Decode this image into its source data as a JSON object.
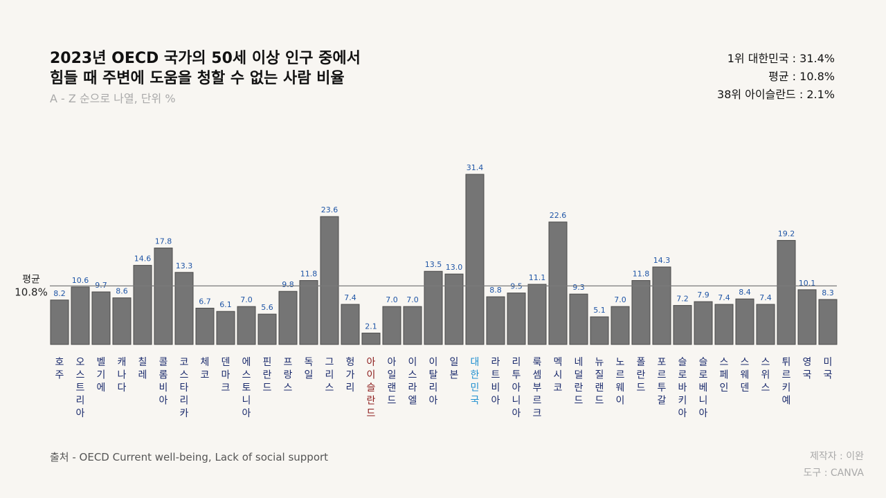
{
  "header": {
    "title_line1": "2023년 OECD 국가의 50세 이상 인구 중에서",
    "title_line2": "힘들 때 주변에 도움을 청할 수 없는 사람 비율",
    "subtitle": "A - Z 순으로 나열, 단위 %"
  },
  "stats": {
    "top": "1위 대한민국 : 31.4%",
    "average": "평균 : 10.8%",
    "bottom": "38위 아이슬란드 : 2.1%"
  },
  "footer": {
    "source": "출처 - OECD Current well-being, Lack of social support",
    "maker": "제작자 : 이완",
    "tool": "도구 : CANVA"
  },
  "chart_data": {
    "type": "bar",
    "title": "2023년 OECD 국가의 50세 이상 인구 중에서 힘들 때 주변에 도움을 청할 수 없는 사람 비율",
    "subtitle": "A - Z 순으로 나열, 단위 %",
    "xlabel": "",
    "ylabel": "",
    "ylim": [
      0,
      34
    ],
    "grid": false,
    "categories": [
      "호주",
      "오스트리아",
      "벨기에",
      "캐나다",
      "칠레",
      "콜롬비아",
      "코스타리카",
      "체코",
      "덴마크",
      "에스토니아",
      "핀란드",
      "프랑스",
      "독일",
      "그리스",
      "헝가리",
      "아이슬란드",
      "아일랜드",
      "이스라엘",
      "이탈리아",
      "일본",
      "대한민국",
      "라트비아",
      "리투아니아",
      "룩셈부르크",
      "멕시코",
      "네덜란드",
      "뉴질랜드",
      "노르웨이",
      "폴란드",
      "포르투갈",
      "슬로바키아",
      "슬로베니아",
      "스페인",
      "스웨덴",
      "스위스",
      "튀르키예",
      "영국",
      "미국"
    ],
    "values": [
      8.2,
      10.6,
      9.7,
      8.6,
      14.6,
      17.8,
      13.3,
      6.7,
      6.1,
      7.0,
      5.6,
      9.8,
      11.8,
      23.6,
      7.4,
      2.1,
      7.0,
      7.0,
      13.5,
      13.0,
      31.4,
      8.8,
      9.5,
      11.1,
      22.6,
      9.3,
      5.1,
      7.0,
      11.8,
      14.3,
      7.2,
      7.9,
      7.4,
      8.4,
      7.4,
      19.2,
      10.1,
      8.3
    ],
    "value_labels": [
      "8.2",
      "10.6",
      "9.7",
      "8.6",
      "14.6",
      "17.8",
      "13.3",
      "6.7",
      "6.1",
      "7.0",
      "5.6",
      "9.8",
      "11.8",
      "23.6",
      "7.4",
      "2.1",
      "7.0",
      "7.0",
      "13.5",
      "13.0",
      "31.4",
      "8.8",
      "9.5",
      "11.1",
      "22.6",
      "9.3",
      "5.1",
      "7.0",
      "11.8",
      "14.3",
      "7.2",
      "7.9",
      "7.4",
      "8.4",
      "7.4",
      "19.2",
      "10.1",
      "8.3"
    ],
    "average": 10.8,
    "average_label_line1": "평균",
    "average_label_line2": "10.8%",
    "highlight_max": "대한민국",
    "highlight_min": "아이슬란드",
    "colors": {
      "bar": "#757575",
      "bar_stroke": "#4a4a4a",
      "value_label": "#1f55a6",
      "category_label": "#1a2a6c",
      "max_label": "#1e8fd0",
      "min_label": "#8b1a1a",
      "average_line": "#7a7a7a",
      "average_text": "#222222"
    }
  }
}
